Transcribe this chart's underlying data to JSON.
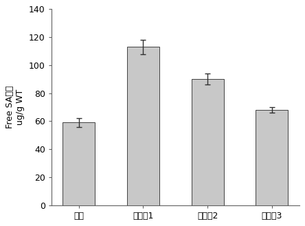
{
  "categories": [
    "对照",
    "过表达1",
    "过表达2",
    "过表达3"
  ],
  "values": [
    59,
    113,
    90,
    68
  ],
  "errors": [
    3,
    5,
    4,
    2
  ],
  "bar_color": "#c8c8c8",
  "bar_edge_color": "#404040",
  "ylabel_line1": "Free SA含量",
  "ylabel_line2": "ug/g WT",
  "ylim": [
    0,
    140
  ],
  "yticks": [
    0,
    20,
    40,
    60,
    80,
    100,
    120,
    140
  ],
  "background_color": "#ffffff",
  "bar_width": 0.5,
  "tick_fontsize": 9,
  "label_fontsize": 9,
  "error_capsize": 3,
  "error_linewidth": 1.0,
  "figsize": [
    4.44,
    3.29
  ],
  "dpi": 100
}
